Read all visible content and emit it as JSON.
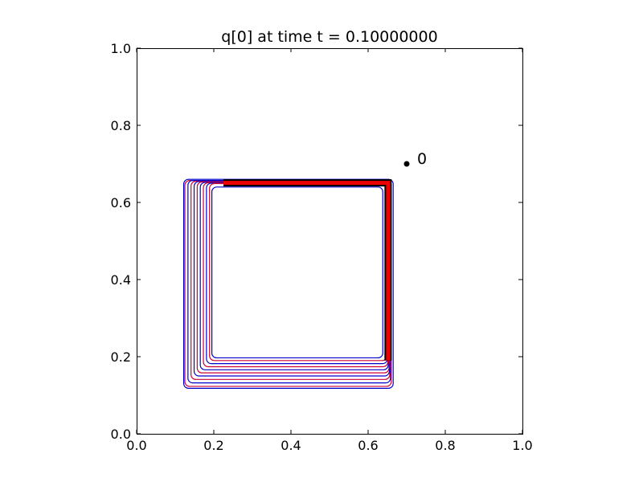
{
  "chart_data": {
    "type": "contour",
    "title": "q[0] at time t =     0.10000000",
    "xlim": [
      0.0,
      1.0
    ],
    "ylim": [
      0.0,
      1.0
    ],
    "xticks": [
      "0.0",
      "0.2",
      "0.4",
      "0.6",
      "0.8",
      "1.0"
    ],
    "yticks": [
      "0.0",
      "0.2",
      "0.4",
      "0.6",
      "0.8",
      "1.0"
    ],
    "grid": false,
    "contour_levels": [
      {
        "color": "#0000cc",
        "x0": 0.122,
        "y0": 0.118,
        "x1": 0.665,
        "y1": 0.66
      },
      {
        "color": "#cc0033",
        "x0": 0.125,
        "y0": 0.123,
        "x1": 0.66,
        "y1": 0.657
      },
      {
        "color": "#0000cc",
        "x0": 0.133,
        "y0": 0.132,
        "x1": 0.658,
        "y1": 0.657
      },
      {
        "color": "#cc0033",
        "x0": 0.141,
        "y0": 0.141,
        "x1": 0.656,
        "y1": 0.655
      },
      {
        "color": "#0000cc",
        "x0": 0.149,
        "y0": 0.15,
        "x1": 0.655,
        "y1": 0.654
      },
      {
        "color": "#cc0033",
        "x0": 0.157,
        "y0": 0.158,
        "x1": 0.654,
        "y1": 0.653
      },
      {
        "color": "#0000cc",
        "x0": 0.165,
        "y0": 0.166,
        "x1": 0.652,
        "y1": 0.652
      },
      {
        "color": "#cc0033",
        "x0": 0.173,
        "y0": 0.174,
        "x1": 0.651,
        "y1": 0.651
      },
      {
        "color": "#0000cc",
        "x0": 0.181,
        "y0": 0.182,
        "x1": 0.65,
        "y1": 0.65
      },
      {
        "color": "#cc0033",
        "x0": 0.189,
        "y0": 0.19,
        "x1": 0.649,
        "y1": 0.649
      },
      {
        "color": "#0000cc",
        "x0": 0.195,
        "y0": 0.197,
        "x1": 0.638,
        "y1": 0.64
      }
    ],
    "thick_band": {
      "x0": 0.225,
      "y0": 0.19,
      "x1": 0.658,
      "y1": 0.657
    },
    "points": [
      {
        "label": "0",
        "x": 0.7,
        "y": 0.7
      }
    ]
  }
}
